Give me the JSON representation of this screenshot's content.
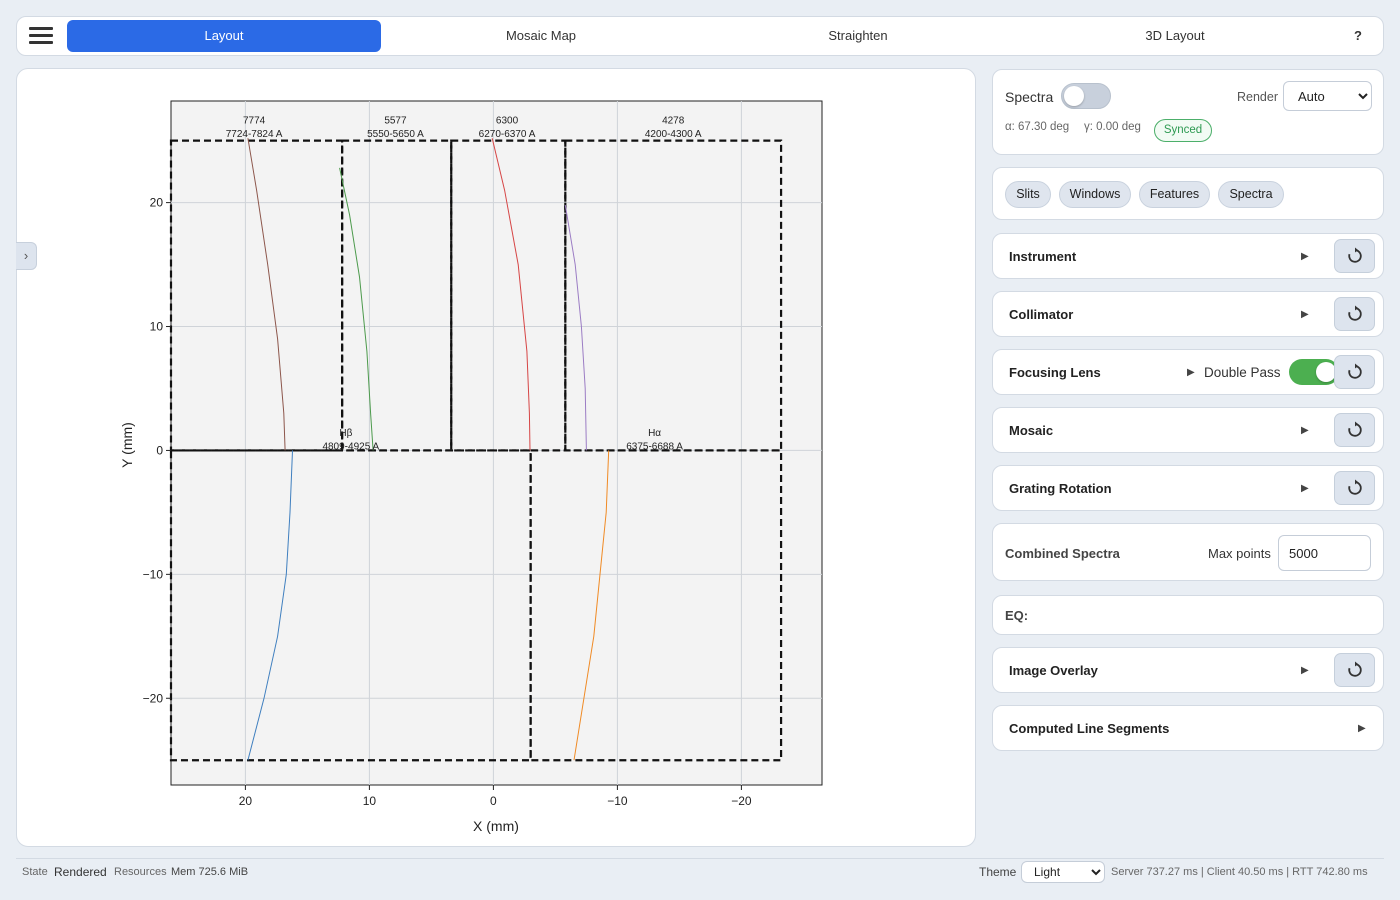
{
  "tabs": [
    {
      "label": "Layout",
      "active": true
    },
    {
      "label": "Mosaic Map",
      "active": false
    },
    {
      "label": "Straighten",
      "active": false
    },
    {
      "label": "3D Layout",
      "active": false
    }
  ],
  "help_label": "?",
  "side_toggle": "›",
  "chart_data": {
    "type": "line",
    "xlabel": "X (mm)",
    "ylabel": "Y (mm)",
    "xlim": [
      26,
      -26.5
    ],
    "ylim": [
      -27,
      28.2
    ],
    "x_reversed": true,
    "xticks": [
      20,
      10,
      0,
      -10,
      -20
    ],
    "xtick_labels": [
      "20",
      "10",
      "0",
      "−10",
      "−20"
    ],
    "yticks": [
      20,
      10,
      0,
      -10,
      -20
    ],
    "ytick_labels": [
      "20",
      "10",
      "0",
      "−10",
      "−20"
    ],
    "grid": true,
    "rects": [
      [
        26,
        25,
        12.2,
        0
      ],
      [
        12.2,
        25,
        3.4,
        0
      ],
      [
        3.4,
        25,
        -5.8,
        0
      ],
      [
        -5.8,
        25,
        -23.2,
        0
      ],
      [
        26,
        0,
        -3,
        -25
      ],
      [
        -3,
        0,
        -23.2,
        -25
      ]
    ],
    "series": [
      {
        "color": "#8c564b",
        "x": [
          19.8,
          19.1,
          18.2,
          17.4,
          16.9,
          16.8
        ],
        "y": [
          25.2,
          21,
          15,
          9,
          3,
          0
        ]
      },
      {
        "color": "#4c9a4c",
        "x": [
          12.4,
          11.6,
          10.8,
          10.2,
          9.9,
          9.7
        ],
        "y": [
          22.8,
          19,
          14,
          8,
          3,
          0
        ]
      },
      {
        "color": "#d64545",
        "x": [
          0.1,
          -0.9,
          -2.0,
          -2.7,
          -2.9,
          -2.95
        ],
        "y": [
          25.2,
          21,
          15,
          8,
          3,
          0
        ]
      },
      {
        "color": "#9b7cc4",
        "x": [
          -5.8,
          -6.6,
          -7.1,
          -7.4,
          -7.5
        ],
        "y": [
          19.8,
          15,
          10,
          5,
          0
        ]
      },
      {
        "color": "#3f7fbf",
        "x": [
          16.2,
          16.4,
          16.7,
          17.4,
          18.5,
          19.8
        ],
        "y": [
          0,
          -5,
          -10,
          -15,
          -20,
          -25
        ]
      },
      {
        "color": "#f08a24",
        "x": [
          -9.3,
          -9.1,
          -8.6,
          -8.1,
          -7.3,
          -6.5
        ],
        "y": [
          0,
          -5,
          -10,
          -15,
          -20,
          -25
        ]
      }
    ],
    "annotations": [
      {
        "x": 19.3,
        "y": 26.3,
        "text": "7774"
      },
      {
        "x": 19.3,
        "y": 25.2,
        "text": "7724-7824 A"
      },
      {
        "x": 7.9,
        "y": 26.3,
        "text": "5577"
      },
      {
        "x": 7.9,
        "y": 25.2,
        "text": "5550-5650 A"
      },
      {
        "x": -1.1,
        "y": 26.3,
        "text": "6300"
      },
      {
        "x": -1.1,
        "y": 25.2,
        "text": "6270-6370 A"
      },
      {
        "x": -14.5,
        "y": 26.3,
        "text": "4278"
      },
      {
        "x": -14.5,
        "y": 25.2,
        "text": "4200-4300 A"
      },
      {
        "x": 11.9,
        "y": 1.1,
        "text": "Hβ"
      },
      {
        "x": 11.5,
        "y": 0.0,
        "text": "4809-4925 A"
      },
      {
        "x": -13.0,
        "y": 1.1,
        "text": "Hα"
      },
      {
        "x": -13.0,
        "y": 0.0,
        "text": "6375-6688 A"
      }
    ]
  },
  "spectra_card": {
    "spectra_label": "Spectra",
    "spectra_on": false,
    "render_label": "Render",
    "render_value": "Auto",
    "alpha_text": "α: 67.30 deg",
    "gamma_text": "γ: 0.00 deg",
    "synced_label": "Synced"
  },
  "chips": [
    "Slits",
    "Windows",
    "Features",
    "Spectra"
  ],
  "sections": [
    {
      "title": "Instrument"
    },
    {
      "title": "Collimator"
    },
    {
      "title": "Focusing Lens",
      "extra_label": "Double Pass",
      "extra_on": true
    },
    {
      "title": "Mosaic"
    },
    {
      "title": "Grating Rotation"
    }
  ],
  "combined": {
    "title": "Combined Spectra",
    "max_points_label": "Max points",
    "max_points_value": "5000"
  },
  "eq_label": "EQ:",
  "image_overlay": {
    "title": "Image Overlay"
  },
  "computed": {
    "title": "Computed Line Segments"
  },
  "footer": {
    "state_label": "State",
    "state_value": "Rendered",
    "resources_label": "Resources",
    "mem": "Mem 725.6 MiB",
    "theme_label": "Theme",
    "theme_value": "Light",
    "timing": "Server 737.27 ms | Client 40.50 ms | RTT 742.80 ms"
  },
  "colors": {
    "accent": "#2b6ae6",
    "toggle_on": "#4caf50",
    "synced": "#2e9a52"
  }
}
